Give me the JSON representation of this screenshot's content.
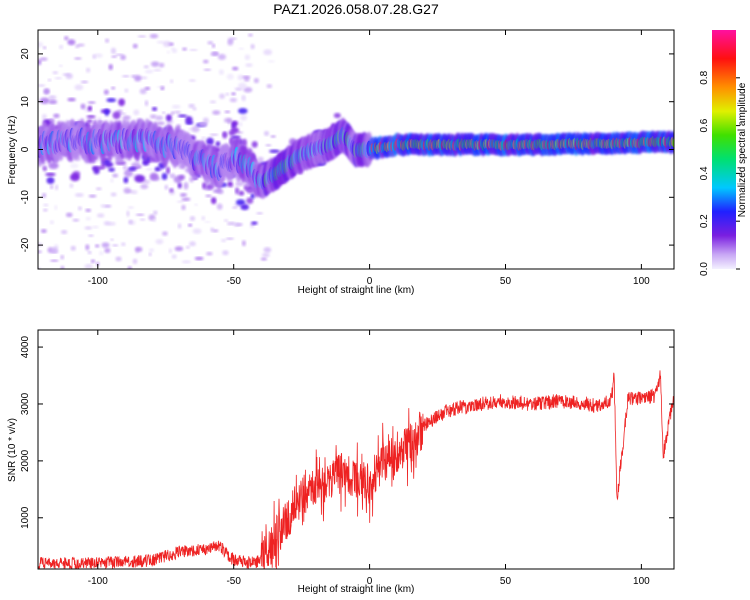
{
  "title": "PAZ1.2026.058.07.28.G27",
  "colors": {
    "snr_line": "#ee2222",
    "axis": "#000000",
    "background": "#ffffff"
  },
  "chart_data": [
    {
      "type": "heatmap",
      "name": "spectrogram",
      "title": "PAZ1.2026.058.07.28.G27",
      "xlabel": "Height of straight line (km)",
      "ylabel": "Frequency (Hz)",
      "xlim": [
        -122,
        112
      ],
      "ylim": [
        -25,
        25
      ],
      "xticks": [
        -100,
        -50,
        0,
        50,
        100
      ],
      "yticks": [
        -20,
        -10,
        0,
        10,
        20
      ],
      "ridge_x": [
        -122,
        -110,
        -100,
        -90,
        -80,
        -70,
        -60,
        -55,
        -50,
        -45,
        -40,
        -35,
        -30,
        -25,
        -20,
        -15,
        -10,
        -8,
        -5,
        0,
        5,
        10,
        20,
        40,
        60,
        80,
        100,
        112
      ],
      "ridge_freq": [
        1,
        2,
        1.5,
        2,
        2,
        0,
        -3,
        -4,
        -2,
        -3,
        -7,
        -5,
        -3,
        -1,
        0,
        1,
        3,
        2,
        0,
        0,
        0.5,
        1,
        1,
        1,
        1,
        1.2,
        1.5,
        1.5
      ],
      "colorbar": {
        "label": "Normalized spectral amplitude",
        "range": [
          0.0,
          1.0
        ],
        "ticks": [
          "0.0",
          "0.2",
          "0.4",
          "0.6",
          "0.8"
        ],
        "colormap": "hsv-rainbow: white-lavender (0) -> purple -> blue -> cyan -> green -> yellow -> orange -> red -> magenta (1)"
      }
    },
    {
      "type": "line",
      "name": "snr",
      "xlabel": "Height of straight line (km)",
      "ylabel": "SNR (10 * v/v)",
      "xlim": [
        -122,
        112
      ],
      "ylim": [
        100,
        4300
      ],
      "xticks": [
        -100,
        -50,
        0,
        50,
        100
      ],
      "yticks": [
        1000,
        2000,
        3000,
        4000
      ],
      "series": [
        {
          "name": "SNR",
          "x": [
            -122,
            -100,
            -80,
            -70,
            -60,
            -55,
            -50,
            -42,
            -38,
            -35,
            -30,
            -25,
            -20,
            -10,
            -5,
            0,
            5,
            10,
            15,
            20,
            25,
            30,
            40,
            50,
            60,
            70,
            80,
            85,
            89,
            90,
            91,
            95,
            100,
            105,
            107,
            108,
            112
          ],
          "values": [
            200,
            200,
            250,
            400,
            450,
            500,
            250,
            200,
            350,
            600,
            1000,
            1400,
            1500,
            1800,
            1700,
            1600,
            2000,
            2100,
            2300,
            2600,
            2800,
            2900,
            3000,
            3050,
            3000,
            3050,
            3000,
            2950,
            3100,
            3500,
            1300,
            3100,
            3100,
            3150,
            3500,
            2100,
            3150
          ]
        }
      ]
    }
  ]
}
